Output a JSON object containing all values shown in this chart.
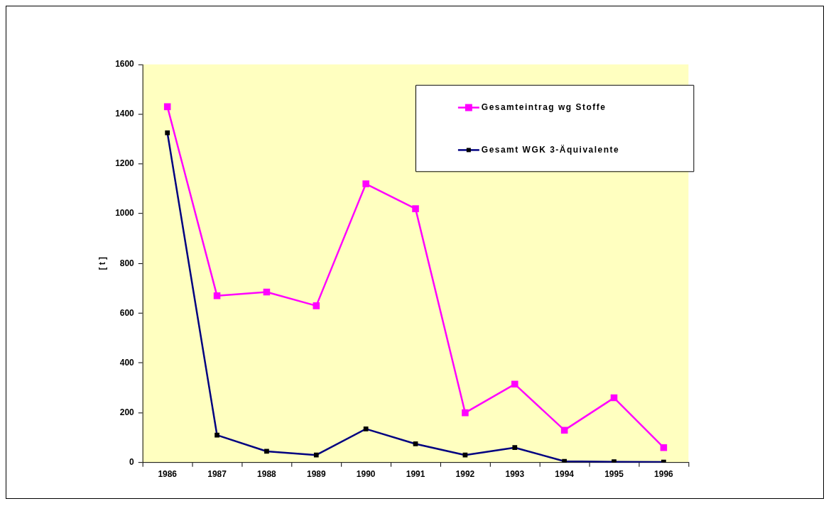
{
  "chart_data": {
    "type": "line",
    "ylabel": "[ t ]",
    "categories": [
      "1986",
      "1987",
      "1988",
      "1989",
      "1990",
      "1991",
      "1992",
      "1993",
      "1994",
      "1995",
      "1996"
    ],
    "series": [
      {
        "name": "Gesamteintrag wg Stoffe",
        "color": "#ff00ff",
        "marker": "square",
        "values": [
          1430,
          670,
          685,
          630,
          1120,
          1020,
          200,
          315,
          130,
          260,
          60
        ]
      },
      {
        "name": "Gesamt WGK 3-Äquivalente",
        "color": "#000080",
        "marker": "square",
        "values": [
          1325,
          110,
          45,
          30,
          135,
          75,
          30,
          60,
          5,
          3,
          2
        ]
      }
    ],
    "ylim": [
      0,
      1600
    ],
    "yticks": [
      0,
      200,
      400,
      600,
      800,
      1000,
      1200,
      1400,
      1600
    ],
    "grid": false,
    "legend": "top right"
  }
}
